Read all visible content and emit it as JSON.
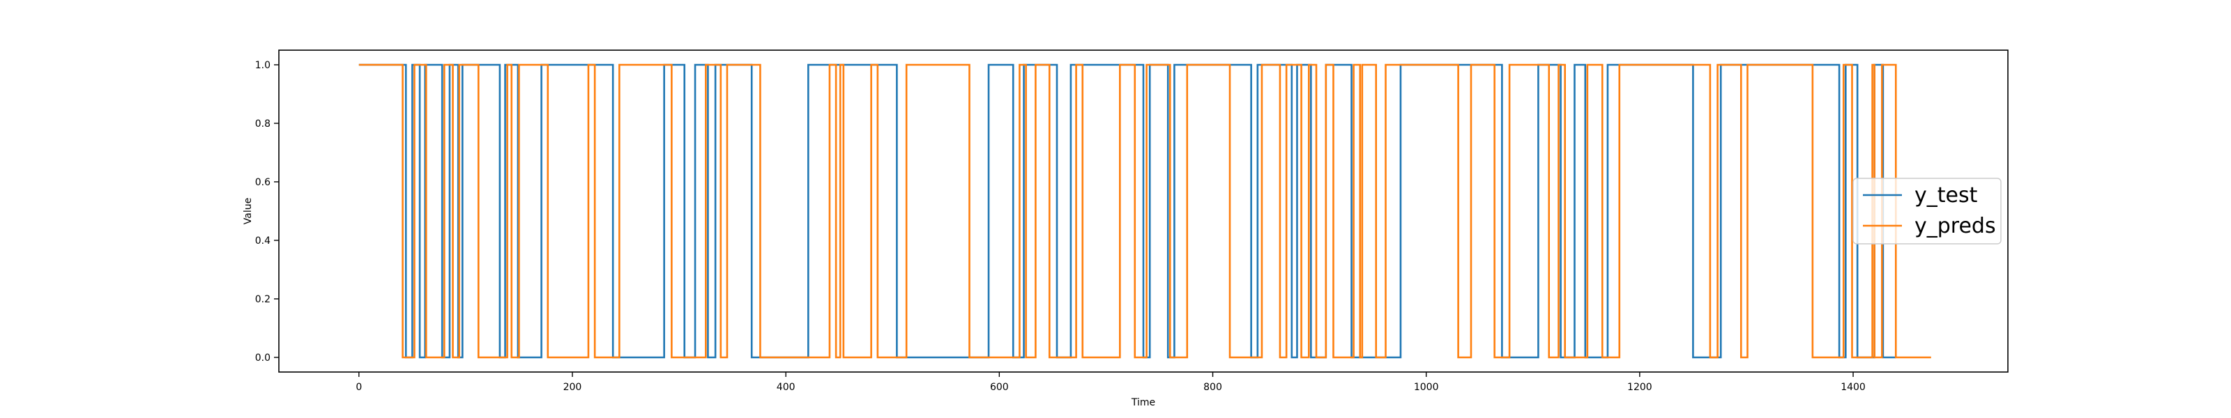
{
  "chart_data": {
    "type": "line",
    "title": "",
    "xlabel": "Time",
    "ylabel": "Value",
    "xlim": [
      -75,
      1545
    ],
    "ylim": [
      -0.05,
      1.05
    ],
    "xticks": [
      0,
      200,
      400,
      600,
      800,
      1000,
      1200,
      1400
    ],
    "xtick_labels": [
      "0",
      "200",
      "400",
      "600",
      "800",
      "1000",
      "1200",
      "1400"
    ],
    "yticks": [
      0.0,
      0.2,
      0.4,
      0.6,
      0.8,
      1.0
    ],
    "ytick_labels": [
      "0.0",
      "0.2",
      "0.4",
      "0.6",
      "0.8",
      "1.0"
    ],
    "grid": false,
    "legend_position": "center-right",
    "series": [
      {
        "name": "y_test",
        "color": "#1f77b4",
        "x": [
          0,
          44,
          44,
          50,
          50,
          57,
          57,
          62,
          62,
          78,
          78,
          85,
          85,
          93,
          93,
          97,
          97,
          132,
          132,
          137,
          137,
          149,
          149,
          171,
          171,
          238,
          238,
          286,
          286,
          305,
          305,
          315,
          315,
          327,
          327,
          334,
          334,
          368,
          368,
          421,
          421,
          504,
          504,
          590,
          590,
          613,
          613,
          623,
          623,
          654,
          654,
          667,
          667,
          735,
          735,
          741,
          741,
          758,
          758,
          764,
          764,
          836,
          836,
          842,
          842,
          874,
          874,
          879,
          879,
          892,
          892,
          906,
          906,
          930,
          930,
          976,
          976,
          1071,
          1071,
          1105,
          1105,
          1126,
          1126,
          1139,
          1139,
          1149,
          1149,
          1170,
          1170,
          1250,
          1250,
          1276,
          1276,
          1387,
          1387,
          1393,
          1393,
          1404,
          1404,
          1420,
          1420,
          1428,
          1428,
          1440
        ],
        "y": [
          1,
          1,
          0,
          0,
          1,
          1,
          0,
          0,
          1,
          1,
          0,
          0,
          1,
          1,
          0,
          0,
          1,
          1,
          0,
          0,
          1,
          1,
          0,
          0,
          1,
          1,
          0,
          0,
          1,
          1,
          0,
          0,
          1,
          1,
          0,
          0,
          1,
          1,
          0,
          0,
          1,
          1,
          0,
          0,
          1,
          1,
          0,
          0,
          1,
          1,
          0,
          0,
          1,
          1,
          0,
          0,
          1,
          1,
          0,
          0,
          1,
          1,
          0,
          0,
          1,
          1,
          0,
          0,
          1,
          1,
          0,
          0,
          1,
          1,
          0,
          0,
          1,
          1,
          0,
          0,
          1,
          1,
          0,
          0,
          1,
          1,
          0,
          0,
          1,
          1,
          0,
          0,
          1,
          1,
          0,
          0,
          1,
          1,
          0,
          0,
          1,
          1,
          0,
          0
        ]
      },
      {
        "name": "y_preds",
        "color": "#ff7f0e",
        "x": [
          0,
          41,
          41,
          52,
          52,
          63,
          63,
          80,
          80,
          88,
          88,
          94,
          94,
          112,
          112,
          139,
          139,
          143,
          143,
          150,
          150,
          177,
          177,
          215,
          215,
          221,
          221,
          244,
          244,
          293,
          293,
          325,
          325,
          339,
          339,
          345,
          345,
          376,
          376,
          441,
          441,
          447,
          447,
          451,
          451,
          454,
          454,
          480,
          480,
          486,
          486,
          513,
          513,
          572,
          572,
          619,
          619,
          625,
          625,
          634,
          634,
          647,
          647,
          672,
          672,
          678,
          678,
          713,
          713,
          727,
          727,
          738,
          738,
          760,
          760,
          776,
          776,
          816,
          816,
          846,
          846,
          863,
          863,
          869,
          869,
          883,
          883,
          890,
          890,
          897,
          897,
          906,
          906,
          913,
          913,
          932,
          932,
          938,
          938,
          940,
          940,
          953,
          953,
          962,
          962,
          1030,
          1030,
          1042,
          1042,
          1064,
          1064,
          1078,
          1078,
          1115,
          1115,
          1124,
          1124,
          1130,
          1130,
          1151,
          1151,
          1165,
          1165,
          1181,
          1181,
          1266,
          1266,
          1273,
          1273,
          1295,
          1295,
          1301,
          1301,
          1362,
          1362,
          1391,
          1391,
          1399,
          1399,
          1418,
          1418,
          1420,
          1420,
          1427,
          1427,
          1440,
          1440,
          1473
        ],
        "y": [
          1,
          1,
          0,
          0,
          1,
          1,
          0,
          0,
          1,
          1,
          0,
          0,
          1,
          1,
          0,
          0,
          1,
          1,
          0,
          0,
          1,
          1,
          0,
          0,
          1,
          1,
          0,
          0,
          1,
          1,
          0,
          0,
          1,
          1,
          0,
          0,
          1,
          1,
          0,
          0,
          1,
          1,
          0,
          0,
          1,
          1,
          0,
          0,
          1,
          1,
          0,
          0,
          1,
          1,
          0,
          0,
          1,
          1,
          0,
          0,
          1,
          1,
          0,
          0,
          1,
          1,
          0,
          0,
          1,
          1,
          0,
          0,
          1,
          1,
          0,
          0,
          1,
          1,
          0,
          0,
          1,
          1,
          0,
          0,
          1,
          1,
          0,
          0,
          1,
          1,
          0,
          0,
          1,
          1,
          0,
          0,
          1,
          1,
          0,
          0,
          1,
          1,
          0,
          0,
          1,
          1,
          0,
          0,
          1,
          1,
          0,
          0,
          1,
          1,
          0,
          0,
          1,
          1,
          0,
          0,
          1,
          1,
          0,
          0,
          1,
          1,
          0,
          0,
          1,
          1,
          0,
          0,
          1,
          1,
          0,
          0,
          1,
          1,
          0,
          0,
          1,
          1,
          0,
          0,
          1,
          1,
          0,
          0
        ]
      }
    ]
  }
}
